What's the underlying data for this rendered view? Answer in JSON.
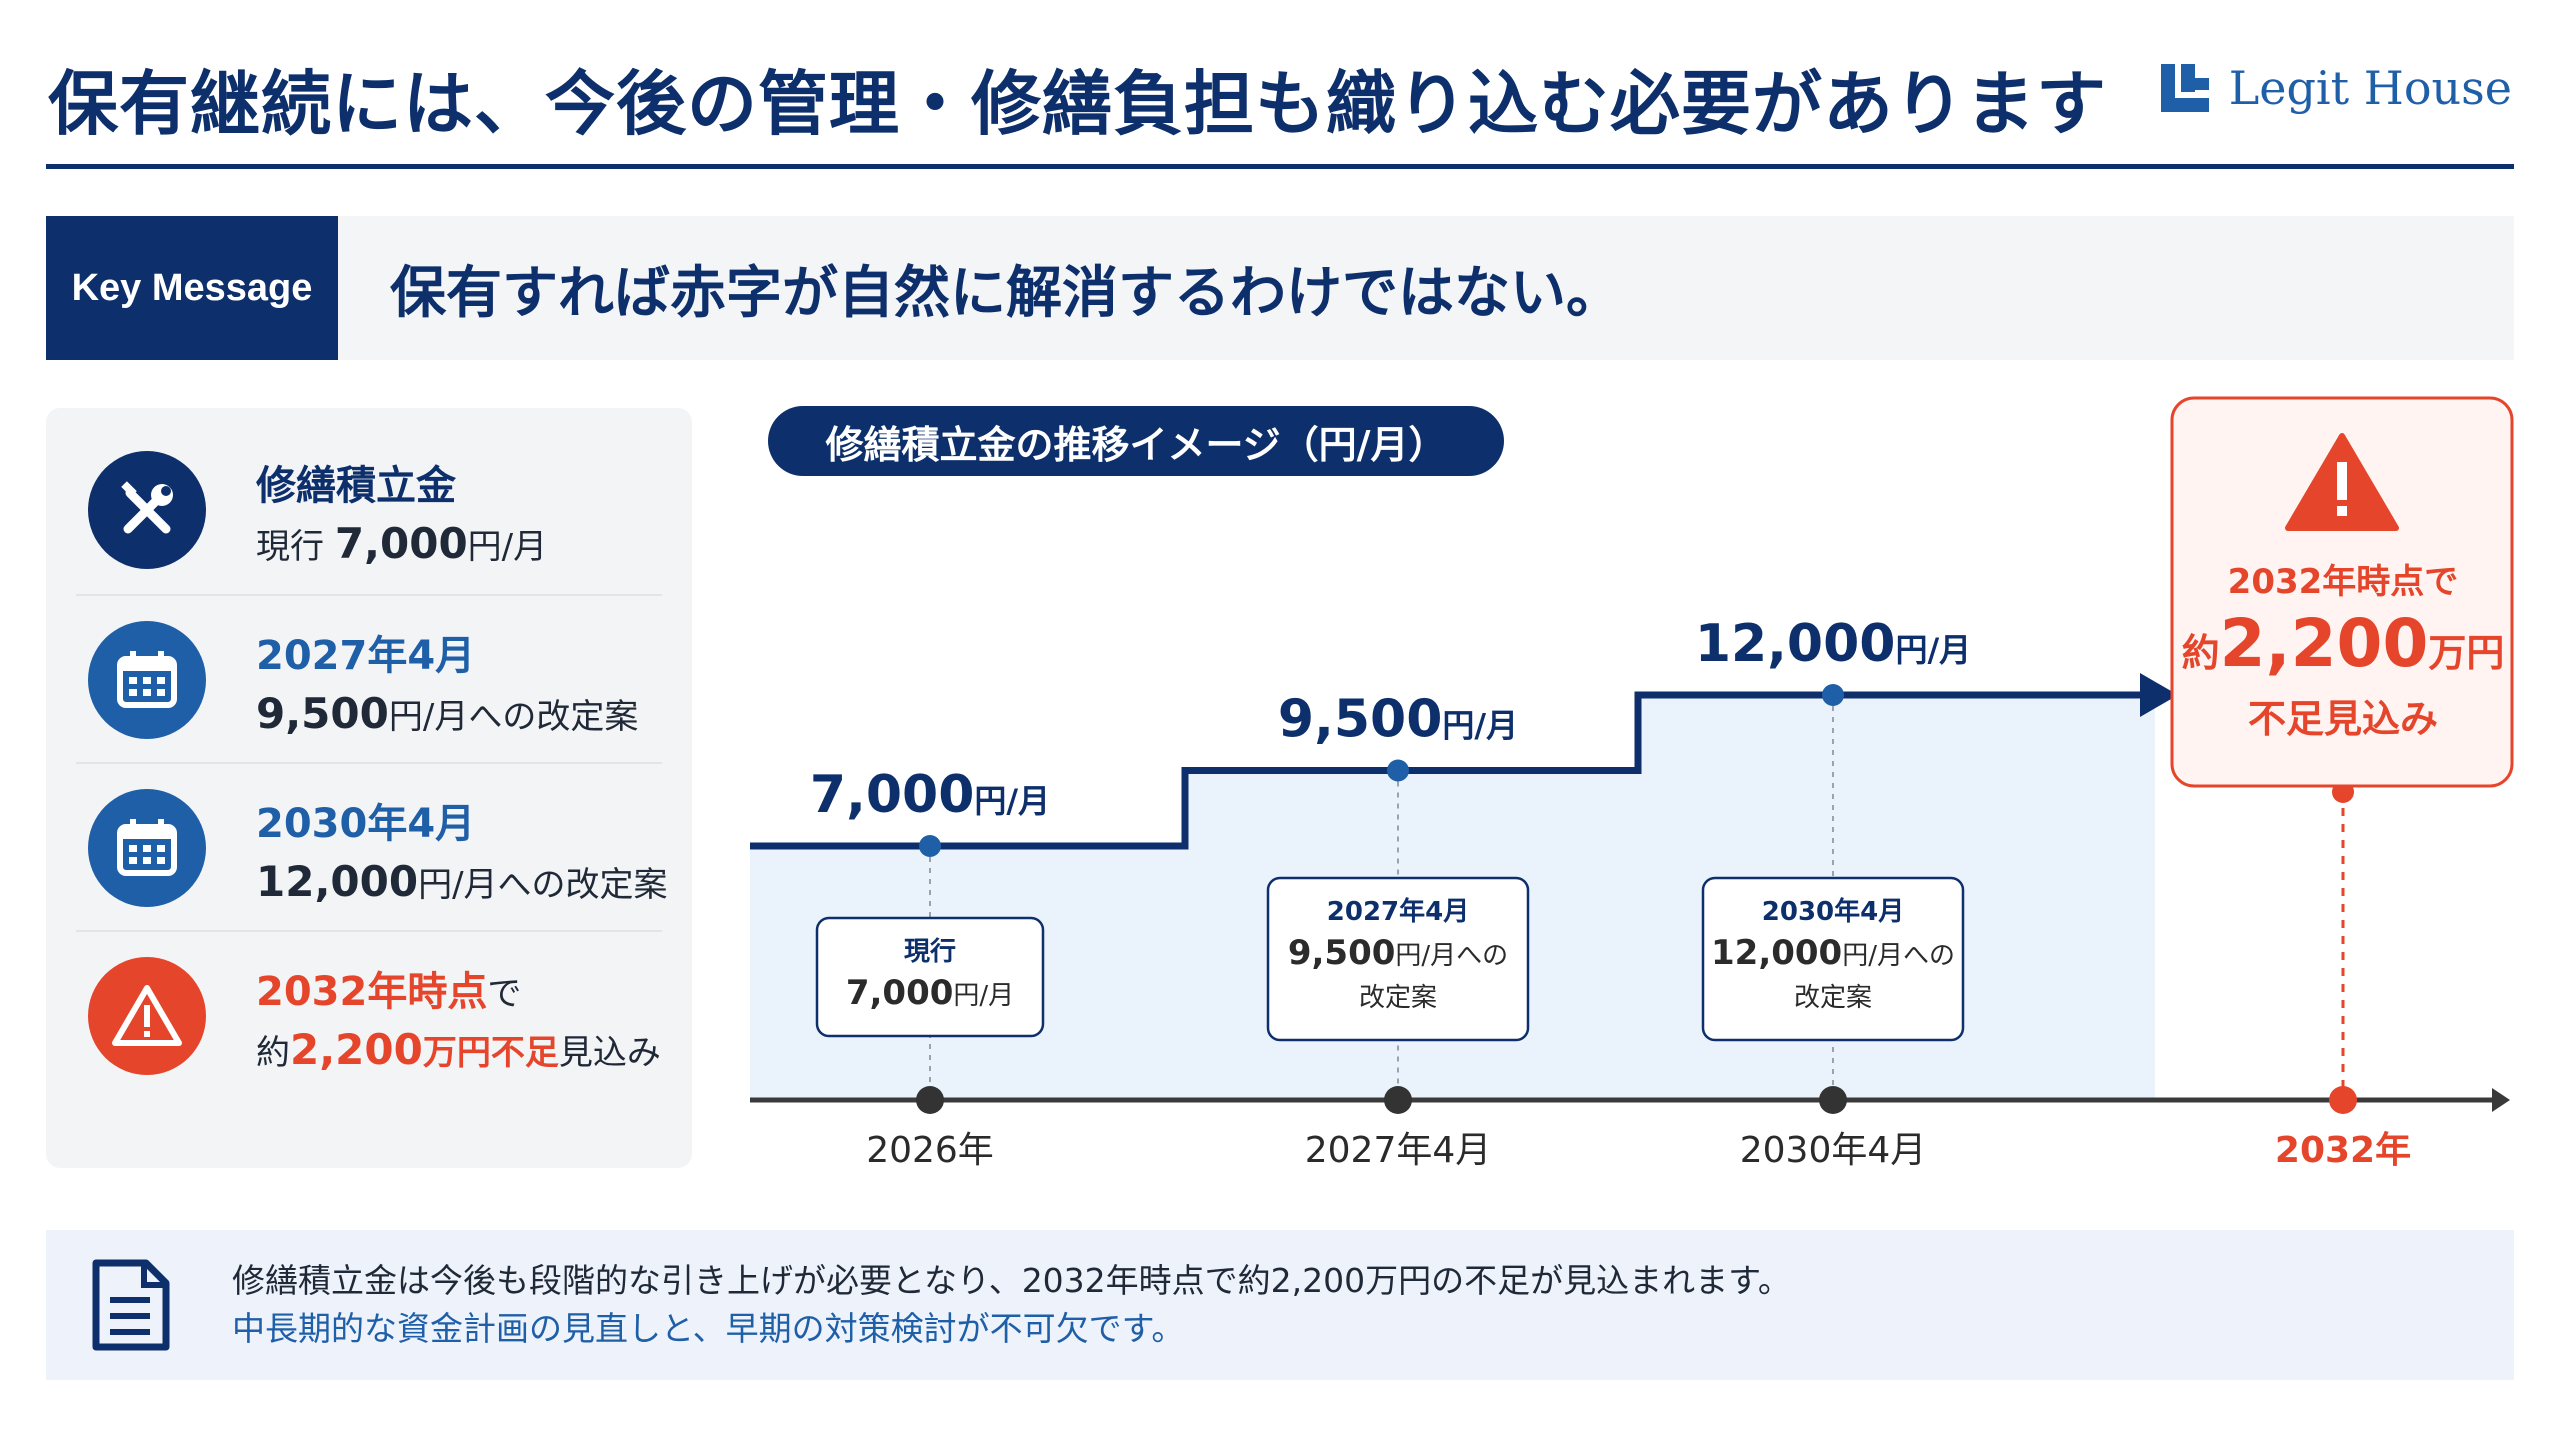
{
  "header": {
    "title": "保有継続には、今後の管理・修繕負担も織り込む必要があります",
    "logo_text": "Legit House"
  },
  "key_message": {
    "label": "Key Message",
    "text": "保有すれば赤字が自然に解消するわけではない。"
  },
  "left_panel": {
    "items": [
      {
        "icon": "wrench-screwdriver-icon",
        "line1": "修繕積立金",
        "line2_prefix": "現行 ",
        "line2_value": "7,000",
        "line2_suffix": "円/月"
      },
      {
        "icon": "calendar-icon",
        "line1": "2027年4月",
        "line2_value": "9,500",
        "line2_suffix": "円/月への改定案"
      },
      {
        "icon": "calendar-icon",
        "line1": "2030年4月",
        "line2_value": "12,000",
        "line2_suffix": "円/月への改定案"
      },
      {
        "icon": "warning-icon",
        "line1_red": "2032年時点",
        "line1_tail": "で",
        "line2_prefix": "約",
        "line2_value": "2,200",
        "line2_red_suffix": "万円不足",
        "line2_tail": "見込み"
      }
    ]
  },
  "chart_title": "修繕積立金の推移イメージ（円/月）",
  "chart_data": {
    "type": "step-line",
    "title": "修繕積立金の推移イメージ（円/月）",
    "unit": "円/月",
    "points": [
      {
        "x": "2026年",
        "y": 7000,
        "value_label": "7,000",
        "box_line1": "現行",
        "box_line2_value": "7,000",
        "box_line2_suffix": "円/月",
        "box_line3": ""
      },
      {
        "x": "2027年4月",
        "y": 9500,
        "value_label": "9,500",
        "box_line1": "2027年4月",
        "box_line2_value": "9,500",
        "box_line2_suffix": "円/月への",
        "box_line3": "改定案"
      },
      {
        "x": "2030年4月",
        "y": 12000,
        "value_label": "12,000",
        "box_line1": "2030年4月",
        "box_line2_value": "12,000",
        "box_line2_suffix": "円/月への",
        "box_line3": "改定案"
      }
    ],
    "value_suffix": "円/月",
    "final_x": "2032年",
    "callout": {
      "line1": "2032年時点で",
      "line2_prefix": "約",
      "line2_value": "2,200",
      "line2_suffix": "万円",
      "line3": "不足見込み"
    }
  },
  "footer": {
    "line1": "修繕積立金は今後も段階的な引き上げが必要となり、2032年時点で約2,200万円の不足が見込まれます。",
    "line2": "中長期的な資金計画の見直しと、早期の対策検討が不可欠です。"
  },
  "colors": {
    "navy": "#0d2f6b",
    "blue": "#1f5fa8",
    "red": "#e5452b",
    "light_fill": "#eaf3fc"
  }
}
